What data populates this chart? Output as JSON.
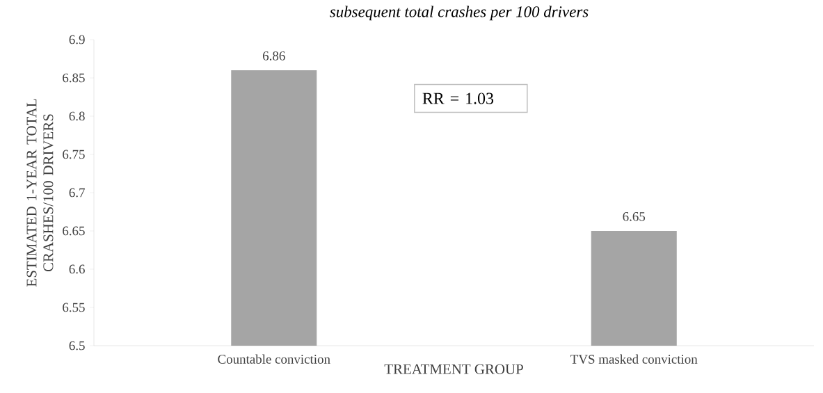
{
  "chart_data": {
    "type": "bar",
    "title": "subsequent total crashes per 100 drivers",
    "xlabel": "TREATMENT GROUP",
    "ylabel": "ESTIMATED 1-YEAR TOTAL CRASHES/100 DRIVERS",
    "categories": [
      "Countable conviction",
      "TVS masked conviction"
    ],
    "values": [
      6.86,
      6.65
    ],
    "color": "#a5a5a5",
    "ylim": [
      6.5,
      6.9
    ],
    "yticks": [
      6.5,
      6.55,
      6.6,
      6.65,
      6.7,
      6.75,
      6.8,
      6.85,
      6.9
    ],
    "data_labels": true,
    "grid": false,
    "annotations": [
      "RR = 1.03"
    ]
  }
}
